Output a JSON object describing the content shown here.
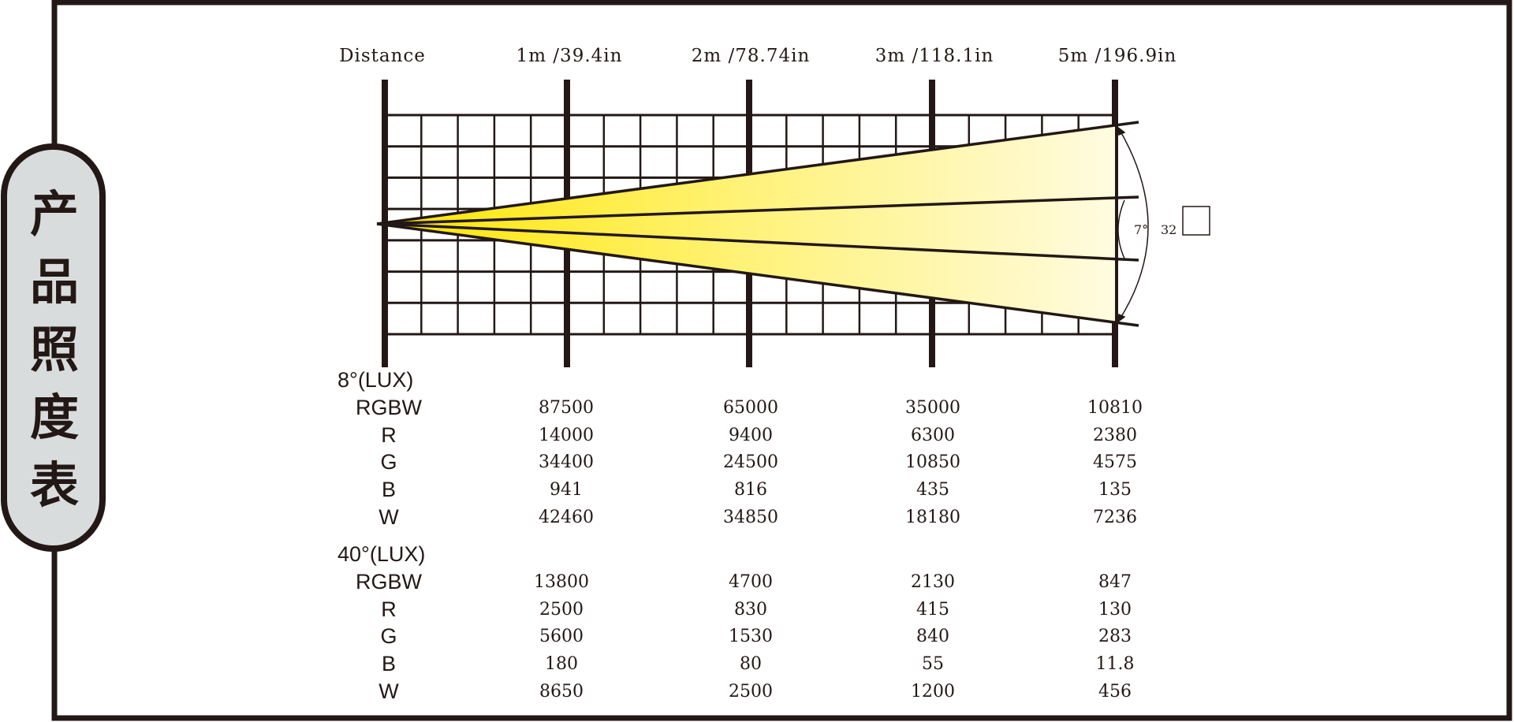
{
  "side_title": [
    "产",
    "品",
    "照",
    "度",
    "表"
  ],
  "distance_headers": [
    "Distance",
    "1m /39.4in",
    "2m /78.74in",
    "3m /118.1in",
    "5m /196.9in"
  ],
  "beam_angles": {
    "narrow": "7°",
    "wide": "32"
  },
  "colors": {
    "frame": "#231815",
    "side_bg": "#d9dcdd",
    "beam_start": "#ffe600",
    "beam_end": "#fffbe0"
  },
  "sections": [
    {
      "title": "8°(LUX)",
      "rows": [
        {
          "label": "RGBW",
          "values": [
            "87500",
            "65000",
            "35000",
            "10810"
          ]
        },
        {
          "label": "R",
          "values": [
            "14000",
            "9400",
            "6300",
            "2380"
          ]
        },
        {
          "label": "G",
          "values": [
            "34400",
            "24500",
            "10850",
            "4575"
          ]
        },
        {
          "label": "B",
          "values": [
            "941",
            "816",
            "435",
            "135"
          ]
        },
        {
          "label": "W",
          "values": [
            "42460",
            "34850",
            "18180",
            "7236"
          ]
        }
      ]
    },
    {
      "title": "40°(LUX)",
      "rows": [
        {
          "label": "RGBW",
          "values": [
            "13800",
            "4700",
            "2130",
            "847"
          ]
        },
        {
          "label": "R",
          "values": [
            "2500",
            "830",
            "415",
            "130"
          ]
        },
        {
          "label": "G",
          "values": [
            "5600",
            "1530",
            "840",
            "283"
          ]
        },
        {
          "label": "B",
          "values": [
            "180",
            "80",
            "55",
            "11.8"
          ]
        },
        {
          "label": "W",
          "values": [
            "8650",
            "2500",
            "1200",
            "456"
          ]
        }
      ]
    }
  ]
}
